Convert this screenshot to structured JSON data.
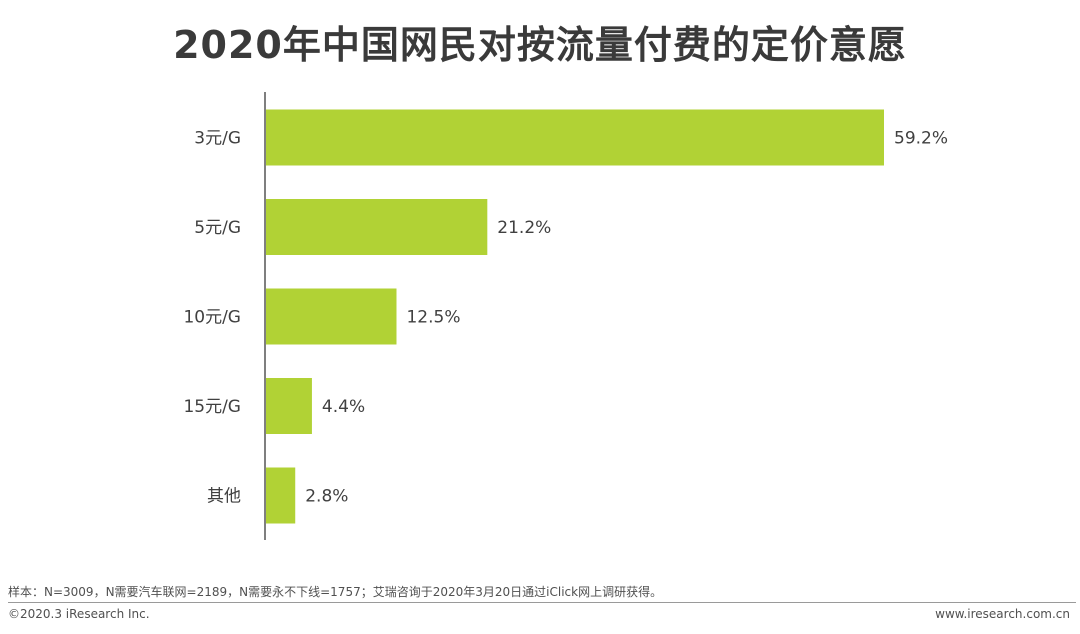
{
  "chart_data": {
    "type": "bar",
    "orientation": "horizontal",
    "title": "2020年中国网民对按流量付费的定价意愿",
    "categories": [
      "3元/G",
      "5元/G",
      "10元/G",
      "15元/G",
      "其他"
    ],
    "values": [
      59.2,
      21.2,
      12.5,
      4.4,
      2.8
    ],
    "value_labels": [
      "59.2%",
      "21.2%",
      "12.5%",
      "4.4%",
      "2.8%"
    ],
    "xlim": [
      0,
      60
    ],
    "grid": false,
    "legend": "none",
    "bar_color": "#b1d235",
    "axis_color": "#555555"
  },
  "footer": {
    "note": "样本：N=3009，N需要汽车联网=2189，N需要永不下线=1757；艾瑞咨询于2020年3月20日通过iClick网上调研获得。",
    "copyright": "©2020.3 iResearch Inc.",
    "website": "www.iresearch.com.cn"
  }
}
